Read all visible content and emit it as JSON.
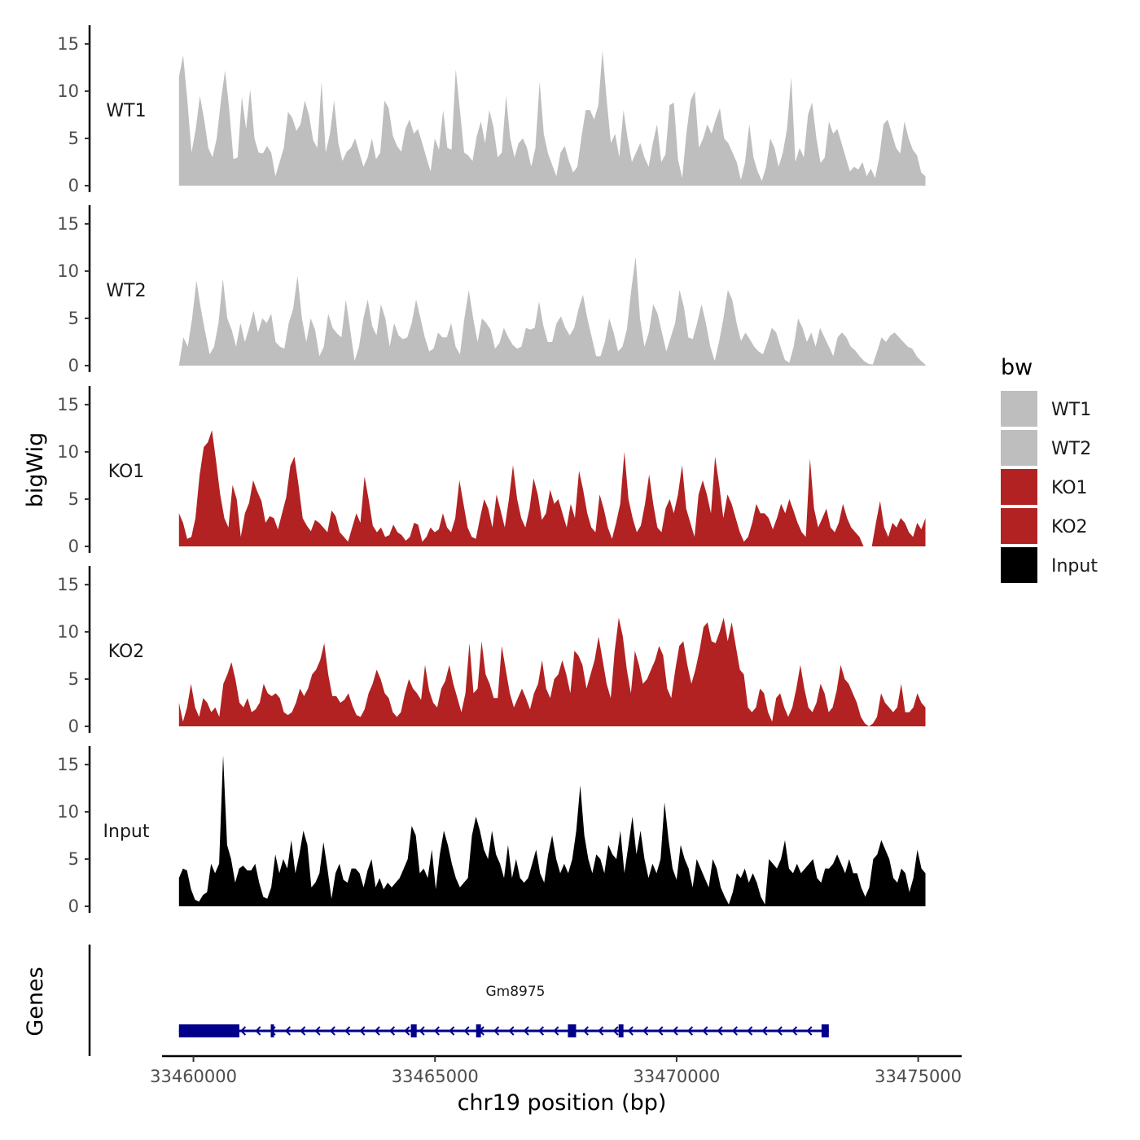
{
  "chart_data": {
    "type": "area",
    "ylabel": "bigWig",
    "xlabel": "chr19 position (bp)",
    "xlim": [
      33459350,
      33475900
    ],
    "x_ticks": [
      33460000,
      33465000,
      33470000,
      33475000
    ],
    "x_tick_labels": [
      "33460000",
      "33465000",
      "33470000",
      "33475000"
    ],
    "ylim": [
      0,
      16.8
    ],
    "y_ticks": [
      0,
      5,
      10,
      15
    ],
    "y_tick_labels": [
      "0",
      "5",
      "10",
      "15"
    ],
    "region": [
      33459700,
      33475150
    ],
    "series": [
      {
        "name": "WT1",
        "color": "#bebebe",
        "values": [
          11.5,
          13.8,
          9.0,
          3.5,
          6.0,
          9.5,
          7.0,
          4.0,
          3.0,
          5.0,
          9.0,
          12.2,
          8.0,
          2.8,
          3.0,
          9.4,
          6.0,
          10.2,
          5.0,
          3.5,
          3.4,
          4.2,
          3.5,
          1.0,
          2.5,
          4.0,
          7.8,
          7.2,
          5.8,
          6.5,
          9.0,
          7.5,
          4.8,
          4.0,
          11.0,
          3.5,
          5.5,
          9.0,
          4.5,
          2.6,
          3.6,
          4.0,
          5.0,
          3.5,
          2.0,
          3.0,
          5.0,
          2.8,
          3.5,
          9.0,
          8.2,
          5.3,
          4.2,
          3.6,
          6.0,
          7.0,
          5.5,
          6.0,
          4.5,
          3.0,
          1.5,
          5.0,
          3.8,
          8.0,
          4.0,
          3.8,
          12.3,
          8.0,
          3.5,
          3.2,
          2.6,
          5.2,
          6.8,
          4.5,
          8.0,
          6.2,
          3.0,
          3.5,
          9.5,
          5.0,
          3.0,
          4.5,
          5.0,
          4.0,
          2.0,
          4.0,
          11.0,
          5.5,
          3.4,
          2.2,
          1.0,
          3.5,
          4.2,
          2.6,
          1.4,
          2.0,
          5.2,
          8.0,
          8.0,
          7.0,
          8.5,
          14.3,
          9.0,
          4.5,
          5.5,
          3.0,
          8.0,
          5.0,
          2.5,
          3.5,
          4.5,
          3.0,
          2.0,
          4.5,
          6.5,
          2.5,
          3.3,
          8.5,
          8.8,
          2.8,
          0.8,
          5.5,
          9.0,
          10.0,
          4.0,
          5.0,
          6.5,
          5.5,
          7.0,
          8.2,
          5.0,
          4.5,
          3.5,
          2.5,
          0.6,
          2.5,
          6.5,
          3.0,
          1.5,
          0.5,
          2.0,
          5.0,
          4.0,
          2.0,
          3.5,
          6.0,
          11.5,
          2.5,
          4.0,
          3.0,
          7.5,
          8.8,
          5.0,
          2.4,
          3.0,
          6.8,
          5.5,
          6.0,
          4.5,
          3.0,
          1.5,
          2.0,
          1.7,
          2.5,
          1.0,
          1.8,
          0.8,
          3.0,
          6.5,
          7.0,
          5.5,
          4.0,
          3.4,
          6.8,
          5.0,
          3.8,
          3.2,
          1.4,
          1.0
        ],
        "label": "WT1"
      },
      {
        "name": "WT2",
        "color": "#bebebe",
        "values": [
          0,
          3.0,
          2.0,
          5.0,
          9.0,
          6.0,
          3.5,
          1.2,
          2.0,
          4.5,
          9.2,
          5.0,
          3.8,
          2.0,
          4.5,
          2.5,
          4.0,
          5.8,
          3.5,
          5.0,
          4.5,
          5.5,
          2.5,
          2.0,
          1.8,
          4.5,
          6.0,
          9.5,
          5.0,
          2.5,
          5.0,
          3.8,
          1.0,
          2.0,
          5.5,
          4.0,
          3.4,
          3.0,
          7.0,
          3.8,
          0.5,
          2.0,
          5.0,
          7.0,
          4.2,
          3.2,
          6.5,
          5.0,
          2.0,
          4.5,
          3.2,
          2.8,
          3.0,
          4.5,
          7.0,
          5.0,
          3.0,
          1.5,
          1.8,
          3.5,
          3.0,
          3.0,
          4.5,
          2.0,
          1.2,
          5.0,
          8.0,
          5.0,
          2.5,
          5.0,
          4.5,
          3.8,
          1.8,
          2.4,
          4.0,
          3.0,
          2.2,
          1.8,
          2.0,
          4.0,
          3.8,
          4.0,
          6.8,
          4.2,
          2.5,
          2.5,
          4.5,
          5.2,
          4.0,
          3.2,
          4.0,
          6.0,
          7.5,
          5.0,
          3.0,
          1.0,
          1.0,
          2.5,
          5.0,
          3.5,
          1.5,
          2.0,
          3.8,
          8.0,
          11.5,
          5.0,
          2.0,
          3.5,
          6.5,
          5.5,
          3.5,
          1.5,
          3.0,
          4.5,
          8.0,
          6.2,
          3.0,
          2.8,
          4.5,
          6.5,
          4.5,
          2.0,
          0.5,
          2.5,
          5.0,
          8.0,
          7.0,
          4.5,
          2.6,
          3.5,
          2.8,
          2.0,
          1.5,
          1.2,
          2.5,
          4.0,
          3.5,
          2.0,
          0.6,
          0.3,
          2.0,
          5.0,
          4.0,
          2.5,
          3.5,
          2.0,
          4.0,
          3.0,
          2.0,
          1.0,
          3.0,
          3.5,
          3.0,
          2.0,
          1.6,
          1.0,
          0.5,
          0.2,
          0.1,
          1.5,
          3.0,
          2.5,
          3.2,
          3.5,
          3.0,
          2.5,
          2.0,
          1.8,
          1.0,
          0.5,
          0.1
        ],
        "label": "WT2"
      },
      {
        "name": "KO1",
        "color": "#b22222",
        "values": [
          3.5,
          2.5,
          0.8,
          1.0,
          3.0,
          7.5,
          10.5,
          11.0,
          12.3,
          9.0,
          5.5,
          3.0,
          2.0,
          6.5,
          5.0,
          1.0,
          3.5,
          4.6,
          7.0,
          5.8,
          4.8,
          2.5,
          3.2,
          3.0,
          1.8,
          3.5,
          5.2,
          8.5,
          9.5,
          6.5,
          3.0,
          2.2,
          1.6,
          2.8,
          2.5,
          2.0,
          1.5,
          3.8,
          3.2,
          1.5,
          1.0,
          0.5,
          2.0,
          3.5,
          2.5,
          7.4,
          5.0,
          2.2,
          1.5,
          2.0,
          1.0,
          1.2,
          2.3,
          1.5,
          1.2,
          0.6,
          1.0,
          2.5,
          2.3,
          0.5,
          1.0,
          2.0,
          1.5,
          1.8,
          3.5,
          2.0,
          1.5,
          3.0,
          7.0,
          4.5,
          2.0,
          1.0,
          0.8,
          3.0,
          5.0,
          4.0,
          2.0,
          5.5,
          3.8,
          2.0,
          5.0,
          8.6,
          5.0,
          3.0,
          2.0,
          4.0,
          7.2,
          5.5,
          2.8,
          3.5,
          6.0,
          4.5,
          5.0,
          3.5,
          2.0,
          4.5,
          3.0,
          8.0,
          6.0,
          3.5,
          2.0,
          1.5,
          5.5,
          4.0,
          2.0,
          0.8,
          2.5,
          4.5,
          10.0,
          5.0,
          3.0,
          1.5,
          2.2,
          4.5,
          7.6,
          4.5,
          2.0,
          1.5,
          4.0,
          5.0,
          3.5,
          5.5,
          8.6,
          4.0,
          2.5,
          1.0,
          5.5,
          7.0,
          5.5,
          3.5,
          9.5,
          6.5,
          3.0,
          5.5,
          4.5,
          3.0,
          1.5,
          0.5,
          1.0,
          2.5,
          4.5,
          3.5,
          3.5,
          3.0,
          1.8,
          3.0,
          4.5,
          3.5,
          5.0,
          3.8,
          2.5,
          1.5,
          1.0,
          9.3,
          4.0,
          2.0,
          3.0,
          4.0,
          2.0,
          1.5,
          2.5,
          4.5,
          3.0,
          2.0,
          1.5,
          1.0,
          0,
          0,
          0,
          2.5,
          4.8,
          2.0,
          1.0,
          2.5,
          2.0,
          3.0,
          2.5,
          1.5,
          1.0,
          2.5,
          1.8,
          3.0
        ],
        "label": "KO1"
      },
      {
        "name": "KO2",
        "color": "#b22222",
        "values": [
          2.5,
          0.5,
          2.0,
          4.5,
          2.0,
          1.0,
          3.0,
          2.5,
          1.5,
          2.0,
          1.0,
          4.5,
          5.5,
          6.8,
          5.0,
          2.5,
          2.0,
          3.0,
          1.5,
          1.8,
          2.5,
          4.5,
          3.5,
          3.2,
          3.5,
          3.0,
          1.5,
          1.2,
          1.5,
          2.5,
          4.0,
          3.2,
          4.0,
          5.5,
          6.0,
          7.0,
          8.8,
          5.5,
          3.2,
          3.2,
          2.5,
          2.8,
          3.5,
          2.2,
          1.2,
          1.0,
          1.8,
          3.5,
          4.5,
          6.0,
          5.0,
          3.5,
          3.0,
          1.5,
          1.0,
          1.5,
          3.5,
          5.0,
          4.0,
          3.5,
          2.8,
          6.5,
          3.8,
          2.5,
          2.0,
          4.0,
          4.8,
          6.5,
          4.5,
          3.0,
          1.5,
          3.5,
          8.8,
          3.5,
          4.0,
          9.0,
          5.5,
          4.5,
          3.0,
          3.0,
          8.5,
          6.0,
          3.5,
          2.0,
          3.0,
          4.0,
          3.0,
          1.8,
          3.5,
          4.5,
          7.0,
          4.0,
          3.0,
          5.0,
          5.5,
          7.0,
          5.5,
          3.5,
          8.0,
          7.5,
          6.5,
          4.0,
          5.5,
          7.0,
          9.5,
          7.0,
          4.5,
          3.0,
          8.0,
          11.5,
          9.5,
          6.0,
          3.5,
          8.0,
          6.5,
          4.5,
          5.0,
          6.0,
          7.0,
          8.5,
          7.5,
          4.0,
          3.0,
          6.0,
          8.5,
          9.0,
          6.5,
          4.5,
          6.0,
          8.0,
          10.5,
          11.0,
          9.0,
          8.8,
          10.0,
          11.5,
          9.0,
          11.0,
          8.5,
          6.0,
          5.5,
          2.0,
          1.5,
          2.0,
          4.0,
          3.5,
          1.5,
          0.5,
          3.0,
          3.5,
          2.0,
          1.0,
          2.0,
          4.0,
          6.5,
          4.0,
          2.0,
          1.5,
          2.5,
          4.5,
          3.5,
          1.5,
          2.0,
          3.8,
          6.5,
          5.0,
          4.5,
          3.5,
          2.5,
          1.0,
          0.3,
          0,
          0.3,
          1.0,
          3.5,
          2.5,
          2.0,
          1.5,
          2.0,
          4.5,
          1.5,
          1.5,
          2.0,
          3.5,
          2.5,
          2.0
        ],
        "label": "KO2"
      },
      {
        "name": "Input",
        "color": "#000000",
        "values": [
          3.0,
          4.0,
          3.8,
          1.8,
          0.7,
          0.5,
          1.2,
          1.5,
          4.5,
          3.5,
          4.5,
          16.0,
          6.5,
          5.0,
          2.5,
          4.0,
          4.3,
          3.8,
          3.8,
          4.5,
          2.5,
          1.0,
          0.8,
          2.0,
          5.5,
          3.5,
          5.0,
          4.0,
          7.0,
          3.5,
          5.5,
          8.0,
          6.5,
          2.0,
          2.5,
          3.5,
          6.8,
          4.0,
          0.8,
          3.5,
          4.5,
          2.8,
          2.5,
          4.0,
          4.0,
          3.5,
          2.0,
          3.8,
          5.0,
          2.0,
          3.0,
          1.8,
          2.5,
          2.0,
          2.5,
          3.0,
          4.0,
          5.0,
          8.5,
          7.5,
          3.5,
          4.0,
          3.0,
          6.0,
          1.8,
          5.5,
          8.0,
          6.5,
          4.5,
          3.0,
          2.0,
          2.5,
          3.0,
          7.5,
          9.5,
          8.0,
          6.0,
          5.0,
          8.0,
          5.5,
          4.5,
          3.0,
          6.5,
          3.0,
          5.0,
          3.0,
          2.5,
          3.0,
          4.5,
          6.0,
          3.5,
          2.5,
          5.5,
          7.5,
          5.0,
          3.5,
          4.5,
          3.5,
          5.0,
          8.0,
          12.8,
          7.5,
          5.0,
          3.5,
          5.5,
          5.0,
          3.5,
          6.5,
          5.5,
          5.0,
          8.0,
          3.5,
          6.5,
          9.5,
          5.5,
          8.0,
          5.0,
          3.0,
          4.5,
          3.5,
          5.0,
          11.0,
          7.0,
          4.0,
          2.8,
          6.5,
          5.0,
          4.0,
          2.0,
          5.0,
          4.0,
          3.0,
          2.0,
          5.0,
          4.0,
          2.0,
          1.0,
          0.2,
          1.5,
          3.5,
          3.0,
          4.0,
          2.5,
          3.5,
          2.5,
          1.0,
          0.2,
          5.0,
          4.5,
          4.0,
          5.0,
          7.0,
          4.0,
          3.5,
          4.5,
          3.5,
          4.0,
          4.5,
          5.0,
          3.0,
          2.5,
          4.0,
          4.0,
          4.5,
          5.5,
          4.5,
          3.5,
          5.0,
          3.5,
          3.5,
          2.0,
          1.0,
          2.0,
          5.0,
          5.5,
          7.0,
          6.0,
          5.0,
          3.0,
          2.5,
          4.0,
          3.5,
          1.5,
          3.0,
          6.0,
          4.0,
          3.5
        ],
        "label": "Input"
      }
    ],
    "genes": {
      "title": "Genes",
      "color": "#00008b",
      "strand": "-",
      "gene_name": "Gm8975",
      "gene_start": 33459700,
      "gene_end": 33473150,
      "exons": [
        [
          33459700,
          33460950
        ],
        [
          33461600,
          33461650
        ],
        [
          33464500,
          33464620
        ],
        [
          33465850,
          33465950
        ],
        [
          33467750,
          33467920
        ],
        [
          33468800,
          33468900
        ],
        [
          33473000,
          33473150
        ]
      ]
    },
    "legend": {
      "title": "bw",
      "position": "right",
      "entries": [
        {
          "label": "WT1",
          "color": "#bebebe"
        },
        {
          "label": "WT2",
          "color": "#bebebe"
        },
        {
          "label": "KO1",
          "color": "#b22222"
        },
        {
          "label": "KO2",
          "color": "#b22222"
        },
        {
          "label": "Input",
          "color": "#000000"
        }
      ]
    }
  }
}
